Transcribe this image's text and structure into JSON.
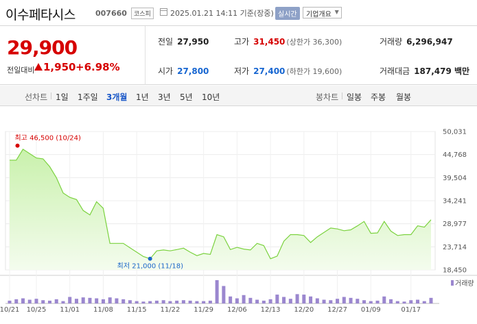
{
  "header": {
    "stock_name": "이수페타시스",
    "stock_code": "007660",
    "market": "코스피",
    "datetime": "2025.01.21 14:11  기준(장중)",
    "realtime_label": "실시간",
    "company_info_label": "기업개요"
  },
  "summary": {
    "price": "29,900",
    "change_label": "전일대비",
    "change_value": "1,950",
    "change_rate": "+6.98%",
    "prev_close_label": "전일",
    "prev_close": "27,950",
    "high_label": "고가",
    "high": "31,450",
    "upper_limit": "(상한가 36,300)",
    "volume_label": "거래량",
    "volume": "6,296,947",
    "open_label": "시가",
    "open": "27,800",
    "low_label": "저가",
    "low": "27,400",
    "lower_limit": "(하한가 19,600)",
    "amount_label": "거래대금",
    "amount": "187,479 백만"
  },
  "periods": {
    "line_label": "선차트",
    "items": [
      "1일",
      "1주일",
      "3개월",
      "1년",
      "3년",
      "5년",
      "10년"
    ],
    "active": "3개월",
    "candle_label": "봉차트",
    "candle_items": [
      "일봉",
      "주봉",
      "월봉"
    ]
  },
  "chart_data": {
    "type": "area",
    "x_ticks": [
      "10/21",
      "10/25",
      "11/01",
      "11/08",
      "11/15",
      "11/22",
      "11/29",
      "12/06",
      "12/13",
      "12/20",
      "12/27",
      "01/09",
      "01/17"
    ],
    "y_ticks": [
      "50,031",
      "44,768",
      "39,504",
      "34,241",
      "28,977",
      "23,714",
      "18,450"
    ],
    "ylim": [
      18450,
      50031
    ],
    "max_label": "최고 46,500 (10/24)",
    "min_label": "최저 21,000 (11/18)",
    "max_value": 46500,
    "min_value": 21000,
    "volume_legend": "거래량",
    "colors": {
      "line": "#7bd23f",
      "area_top": "#c9f1ac",
      "area_bottom": "#f4fcee",
      "volume": "#9b87cf",
      "max": "#d60000",
      "min": "#1b66c9"
    },
    "series": [
      {
        "values": [
          43500,
          43500,
          46000,
          45000,
          44000,
          43800,
          42000,
          39500,
          36000,
          35000,
          34500,
          32000,
          31000,
          34000,
          32500,
          24500,
          24500,
          24500,
          23500,
          22500,
          21500,
          21000,
          22800,
          23000,
          22800,
          23100,
          23400,
          22500,
          21700,
          22200,
          22000,
          26500,
          26000,
          23100,
          23600,
          23200,
          23000,
          24500,
          24000,
          21000,
          21600,
          25000,
          26500,
          26500,
          26300,
          24700,
          26000,
          27000,
          28000,
          27800,
          27400,
          27600,
          28500,
          29500,
          26800,
          26900,
          29500,
          27300,
          26300,
          26500,
          26500,
          28500,
          28200,
          29900
        ]
      },
      {
        "values": [
          12,
          18,
          22,
          16,
          20,
          14,
          12,
          18,
          10,
          28,
          20,
          26,
          24,
          22,
          18,
          26,
          22,
          18,
          14,
          10,
          8,
          10,
          12,
          14,
          10,
          12,
          14,
          12,
          10,
          10,
          12,
          100,
          75,
          30,
          22,
          36,
          24,
          16,
          12,
          18,
          38,
          28,
          20,
          40,
          38,
          30,
          22,
          16,
          14,
          20,
          28,
          24,
          20,
          14,
          10,
          12,
          30,
          18,
          10,
          8,
          14,
          16,
          10,
          24
        ]
      }
    ]
  }
}
